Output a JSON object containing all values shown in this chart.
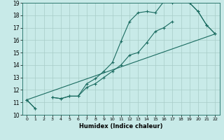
{
  "title": "",
  "xlabel": "Humidex (Indice chaleur)",
  "background_color": "#c8eae8",
  "grid_color": "#a8ccc8",
  "line_color": "#1a6b60",
  "xlim": [
    -0.5,
    22.5
  ],
  "ylim": [
    10,
    19
  ],
  "xticks": [
    0,
    1,
    2,
    3,
    4,
    5,
    6,
    7,
    8,
    9,
    10,
    11,
    12,
    13,
    14,
    15,
    16,
    17,
    18,
    19,
    20,
    21,
    22
  ],
  "yticks": [
    10,
    11,
    12,
    13,
    14,
    15,
    16,
    17,
    18,
    19
  ],
  "hours": [
    0,
    1,
    2,
    3,
    4,
    5,
    6,
    7,
    8,
    9,
    10,
    11,
    12,
    13,
    14,
    15,
    16,
    17,
    18,
    19,
    20,
    21,
    22
  ],
  "line_upper": [
    11.2,
    10.5,
    null,
    11.4,
    11.3,
    11.5,
    11.5,
    12.5,
    12.9,
    13.5,
    14.2,
    15.9,
    17.5,
    18.2,
    18.3,
    18.2,
    19.1,
    19.0,
    null,
    19.0,
    18.3,
    17.2,
    16.5
  ],
  "line_lower": [
    11.2,
    10.5,
    null,
    11.4,
    11.3,
    11.5,
    11.5,
    12.2,
    12.5,
    13.0,
    13.5,
    14.0,
    14.8,
    15.0,
    15.8,
    16.7,
    17.0,
    17.5,
    null,
    19.0,
    18.3,
    17.2,
    16.5
  ],
  "line_diag": [
    [
      0,
      22
    ],
    [
      11.2,
      16.5
    ]
  ]
}
